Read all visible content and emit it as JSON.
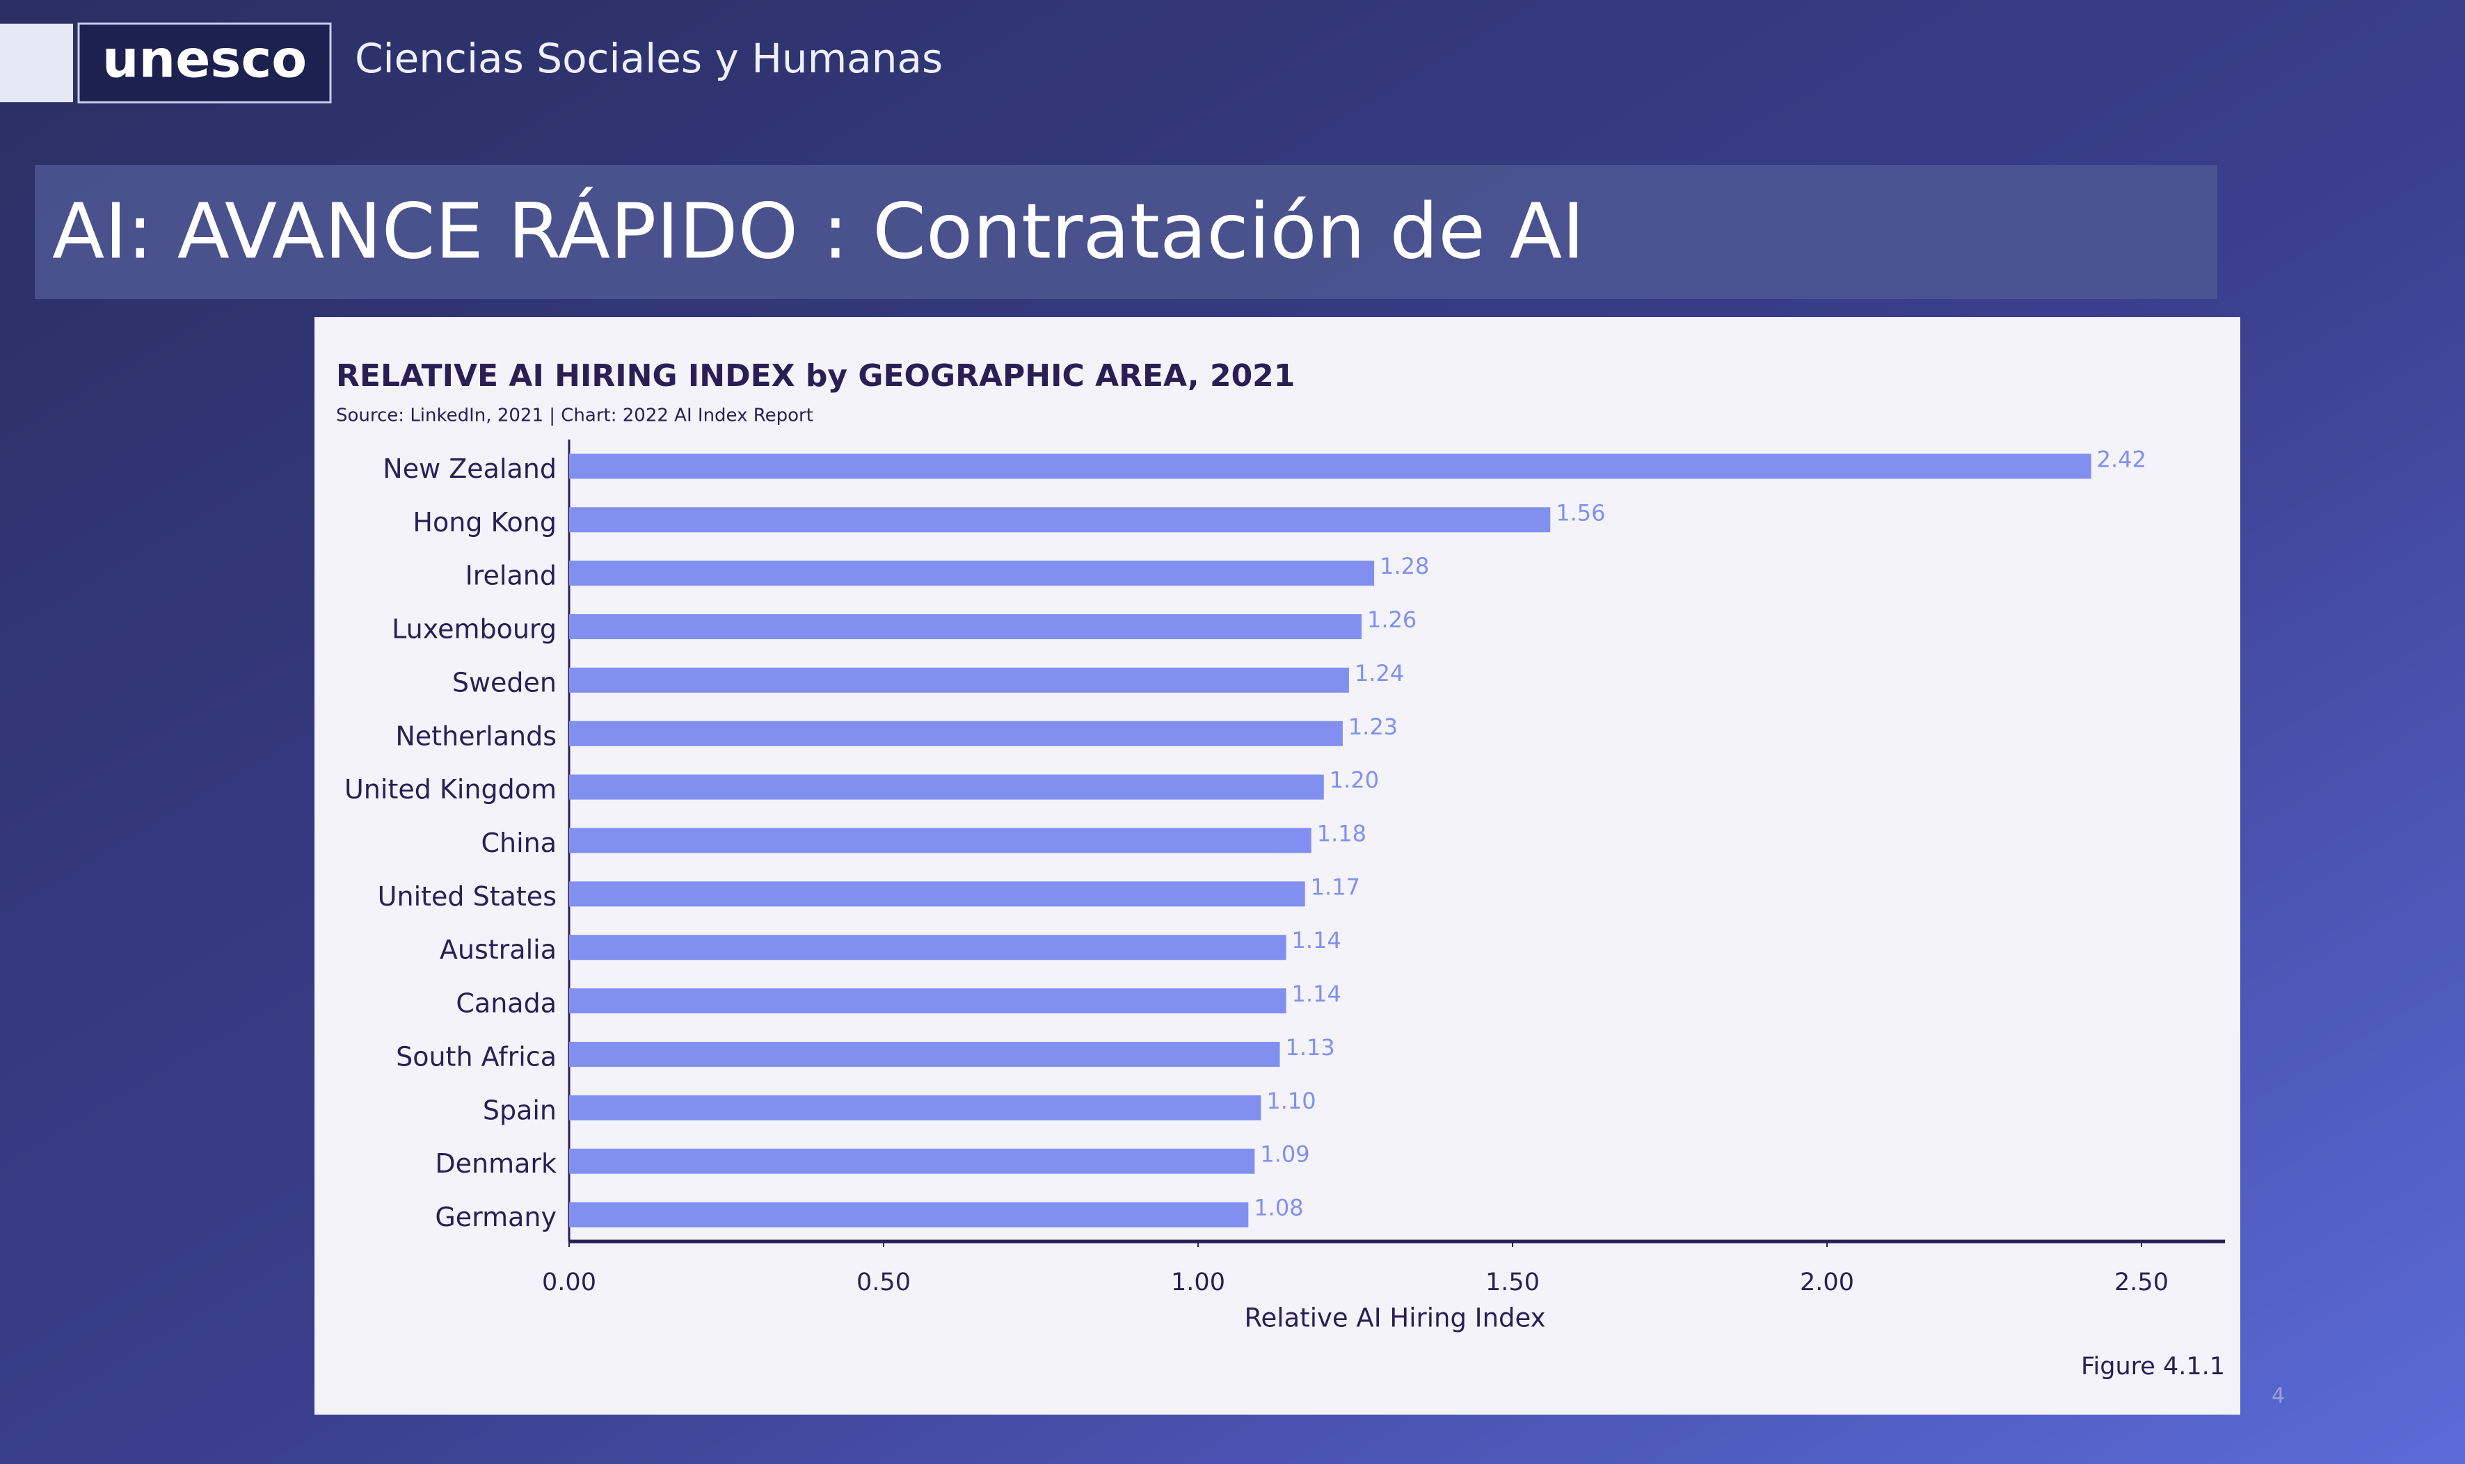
{
  "header": {
    "logo": "unesco",
    "sector": "Ciencias Sociales y Humanas"
  },
  "slide": {
    "title": "AI: AVANCE RÁPIDO : Contratación de AI",
    "page_number": "4"
  },
  "chart_data": {
    "type": "bar",
    "orientation": "horizontal",
    "title": "RELATIVE AI HIRING INDEX by GEOGRAPHIC AREA, 2021",
    "subtitle": "Source: LinkedIn, 2021 | Chart: 2022 AI Index Report",
    "categories": [
      "New Zealand",
      "Hong Kong",
      "Ireland",
      "Luxembourg",
      "Sweden",
      "Netherlands",
      "United Kingdom",
      "China",
      "United States",
      "Australia",
      "Canada",
      "South Africa",
      "Spain",
      "Denmark",
      "Germany"
    ],
    "values": [
      2.42,
      1.56,
      1.28,
      1.26,
      1.24,
      1.23,
      1.2,
      1.18,
      1.17,
      1.14,
      1.14,
      1.13,
      1.1,
      1.09,
      1.08
    ],
    "value_labels": [
      "2.42",
      "1.56",
      "1.28",
      "1.26",
      "1.24",
      "1.23",
      "1.20",
      "1.18",
      "1.17",
      "1.14",
      "1.14",
      "1.13",
      "1.10",
      "1.09",
      "1.08"
    ],
    "color": "#8190f0",
    "xlim": [
      0,
      2.5
    ],
    "xticks": [
      {
        "value": 0,
        "label": "0.00"
      },
      {
        "value": 0.5,
        "label": "0.50"
      },
      {
        "value": 1,
        "label": "1.00"
      },
      {
        "value": 1.5,
        "label": "1.50"
      },
      {
        "value": 2,
        "label": "2.00"
      },
      {
        "value": 2.5,
        "label": "2.50"
      }
    ],
    "xlabel": "Relative AI Hiring Index",
    "annotation": "Figure 4.1.1"
  }
}
